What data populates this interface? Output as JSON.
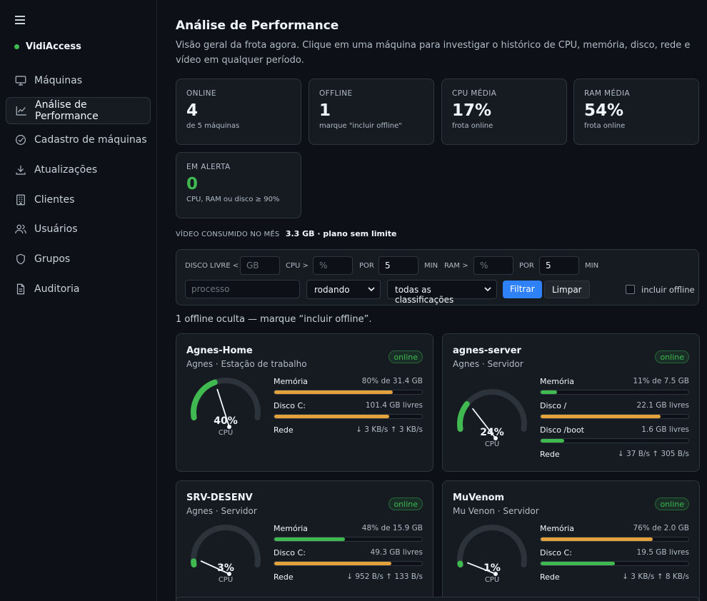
{
  "app": {
    "name": "VidiAccess"
  },
  "sidebar": {
    "items": [
      {
        "label": "Máquinas",
        "icon": "monitor-icon"
      },
      {
        "label": "Análise de Performance",
        "icon": "chart-line-icon",
        "active": true
      },
      {
        "label": "Cadastro de máquinas",
        "icon": "check-circle-icon"
      },
      {
        "label": "Atualizações",
        "icon": "download-icon"
      },
      {
        "label": "Clientes",
        "icon": "building-icon"
      },
      {
        "label": "Usuários",
        "icon": "users-icon"
      },
      {
        "label": "Grupos",
        "icon": "shield-icon"
      },
      {
        "label": "Auditoria",
        "icon": "document-icon"
      }
    ]
  },
  "header": {
    "title": "Análise de Performance",
    "subtitle": "Visão geral da frota agora. Clique em uma máquina para investigar o histórico de CPU, memória, disco, rede e vídeo em qualquer período."
  },
  "stats": [
    {
      "label": "ONLINE",
      "value": "4",
      "sub": "de 5 máquinas"
    },
    {
      "label": "OFFLINE",
      "value": "1",
      "sub": "marque \"incluir offline\""
    },
    {
      "label": "CPU MÉDIA",
      "value": "17%",
      "sub": "frota online"
    },
    {
      "label": "RAM MÉDIA",
      "value": "54%",
      "sub": "frota online"
    },
    {
      "label": "EM ALERTA",
      "value": "0",
      "sub": "CPU, RAM ou disco ≥ 90%"
    }
  ],
  "video": {
    "label": "VÍDEO CONSUMIDO NO MÊS",
    "value": "3.3 GB · plano sem limite"
  },
  "filters": {
    "disk_label": "DISCO LIVRE <",
    "disk_placeholder": "GB",
    "cpu_label": "CPU >",
    "cpu_placeholder": "%",
    "por1": "POR",
    "cpu_min": "5",
    "min1": "MIN",
    "ram_label": "RAM >",
    "ram_placeholder": "%",
    "por2": "POR",
    "ram_min": "5",
    "min2": "MIN",
    "process_placeholder": "processo",
    "state_select": "rodando",
    "class_select": "todas as classificações",
    "filter_btn": "Filtrar",
    "clear_btn": "Limpar",
    "include_offline": "incluir offline"
  },
  "hidden_note": "1 offline oculta — marque “incluir offline”.",
  "colors": {
    "green": "#3fb950",
    "orange": "#e3a23c",
    "blue": "#2f81f7"
  },
  "machines": [
    {
      "name": "Agnes-Home",
      "meta": "Agnes · Estação de trabalho",
      "status": "online",
      "cpu": 40,
      "cpu_text": "40%",
      "cpu_label": "CPU",
      "metrics": [
        {
          "name": "Memória",
          "value": "80% de 31.4 GB",
          "pct": 80,
          "color": "orange"
        },
        {
          "name": "Disco C:",
          "value": "101.4 GB livres",
          "pct": 78,
          "color": "orange"
        },
        {
          "name": "Rede",
          "value": "↓ 3 KB/s ↑ 3 KB/s"
        }
      ]
    },
    {
      "name": "agnes-server",
      "meta": "Agnes · Servidor",
      "status": "online",
      "cpu": 24,
      "cpu_text": "24%",
      "cpu_label": "CPU",
      "metrics": [
        {
          "name": "Memória",
          "value": "11% de 7.5 GB",
          "pct": 11,
          "color": "green"
        },
        {
          "name": "Disco /",
          "value": "22.1 GB livres",
          "pct": 81,
          "color": "orange"
        },
        {
          "name": "Disco /boot",
          "value": "1.6 GB livres",
          "pct": 16,
          "color": "green"
        },
        {
          "name": "Rede",
          "value": "↓ 37 B/s ↑ 305 B/s"
        }
      ]
    },
    {
      "name": "SRV-DESENV",
      "meta": "Agnes · Servidor",
      "status": "online",
      "cpu": 3,
      "cpu_text": "3%",
      "cpu_label": "CPU",
      "metrics": [
        {
          "name": "Memória",
          "value": "48% de 15.9 GB",
          "pct": 48,
          "color": "green"
        },
        {
          "name": "Disco C:",
          "value": "49.3 GB livres",
          "pct": 79,
          "color": "orange"
        },
        {
          "name": "Rede",
          "value": "↓ 952 B/s ↑ 133 B/s"
        }
      ]
    },
    {
      "name": "MuVenom",
      "meta": "Mu Venon · Servidor",
      "status": "online",
      "cpu": 1,
      "cpu_text": "1%",
      "cpu_label": "CPU",
      "metrics": [
        {
          "name": "Memória",
          "value": "76% de 2.0 GB",
          "pct": 76,
          "color": "orange"
        },
        {
          "name": "Disco C:",
          "value": "19.5 GB livres",
          "pct": 50,
          "color": "green"
        },
        {
          "name": "Rede",
          "value": "↓ 3 KB/s ↑ 8 KB/s"
        }
      ]
    }
  ]
}
